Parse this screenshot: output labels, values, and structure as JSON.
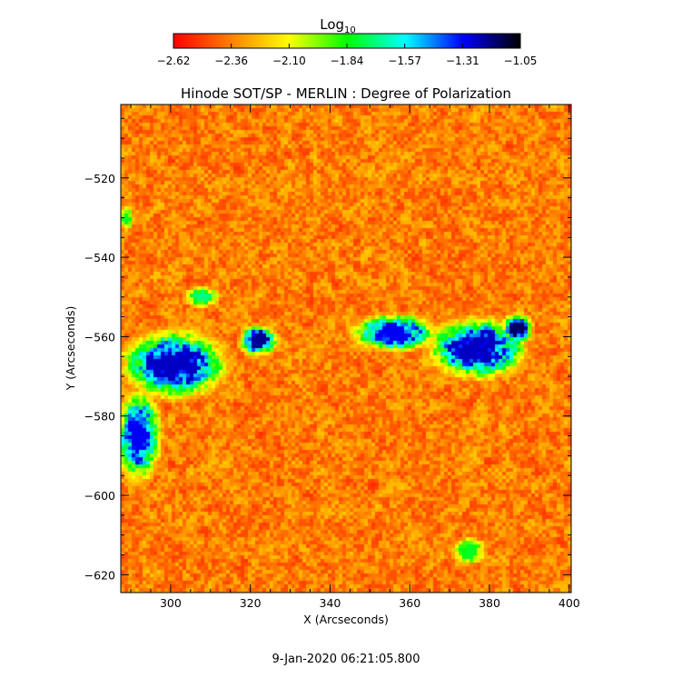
{
  "chart_data": {
    "type": "heatmap",
    "title": "Hinode SOT/SP - MERLIN : Degree of Polarization",
    "xlabel": "X (Arcseconds)",
    "ylabel": "Y (Arcseconds)",
    "xlim": [
      287.5,
      400.5
    ],
    "ylim": [
      -624.5,
      -501.5
    ],
    "x_ticks": [
      300,
      320,
      340,
      360,
      380,
      400
    ],
    "y_ticks": [
      -520,
      -540,
      -560,
      -580,
      -600,
      -620
    ],
    "colorbar": {
      "label": "Log",
      "label_sub": "10",
      "range": [
        -2.62,
        -1.05
      ],
      "ticks": [
        "-2.62",
        "-2.36",
        "-2.10",
        "-1.84",
        "-1.57",
        "-1.31",
        "-1.05"
      ],
      "colors": [
        "#ff0000",
        "#ff8000",
        "#ffff00",
        "#00ff00",
        "#00ffff",
        "#0000ff",
        "#000000"
      ]
    },
    "regions": [
      {
        "x": 301,
        "y": -567,
        "rx": 14,
        "ry": 9,
        "level": -1.25
      },
      {
        "x": 292,
        "y": -585,
        "rx": 6,
        "ry": 12,
        "level": -1.3
      },
      {
        "x": 322,
        "y": -561,
        "rx": 5,
        "ry": 4,
        "level": -1.2
      },
      {
        "x": 356,
        "y": -559,
        "rx": 11,
        "ry": 5,
        "level": -1.3
      },
      {
        "x": 377,
        "y": -563,
        "rx": 13,
        "ry": 8,
        "level": -1.25
      },
      {
        "x": 387,
        "y": -558,
        "rx": 4,
        "ry": 4,
        "level": -1.15
      },
      {
        "x": 308,
        "y": -550,
        "rx": 5,
        "ry": 3,
        "level": -1.7
      },
      {
        "x": 375,
        "y": -614,
        "rx": 5,
        "ry": 4,
        "level": -1.8
      },
      {
        "x": 289,
        "y": -530,
        "rx": 2,
        "ry": 4,
        "level": -1.8
      }
    ],
    "annotation": "9-Jan-2020 06:21:05.800"
  }
}
